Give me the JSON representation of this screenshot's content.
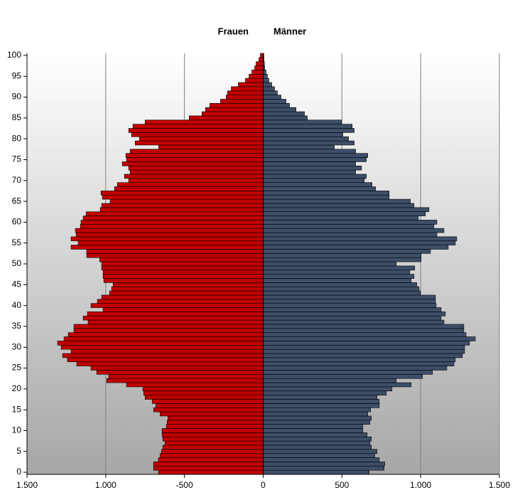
{
  "chart_data": {
    "type": "pyramid",
    "categories": [
      0,
      1,
      2,
      3,
      4,
      5,
      6,
      7,
      8,
      9,
      10,
      11,
      12,
      13,
      14,
      15,
      16,
      17,
      18,
      19,
      20,
      21,
      22,
      23,
      24,
      25,
      26,
      27,
      28,
      29,
      30,
      31,
      32,
      33,
      34,
      35,
      36,
      37,
      38,
      39,
      40,
      41,
      42,
      43,
      44,
      45,
      46,
      47,
      48,
      49,
      50,
      51,
      52,
      53,
      54,
      55,
      56,
      57,
      58,
      59,
      60,
      61,
      62,
      63,
      64,
      65,
      66,
      67,
      68,
      69,
      70,
      71,
      72,
      73,
      74,
      75,
      76,
      77,
      78,
      79,
      80,
      81,
      82,
      83,
      84,
      85,
      86,
      87,
      88,
      89,
      90,
      91,
      92,
      93,
      94,
      95,
      96,
      97,
      98,
      99,
      100
    ],
    "series": [
      {
        "name": "Frauen",
        "color": "#c00000",
        "side": "left",
        "values": [
          665,
          696,
          696,
          665,
          655,
          646,
          637,
          624,
          637,
          642,
          642,
          615,
          610,
          605,
          655,
          696,
          682,
          705,
          750,
          759,
          764,
          868,
          994,
          981,
          1057,
          1094,
          1184,
          1243,
          1274,
          1220,
          1283,
          1306,
          1265,
          1238,
          1202,
          1202,
          1112,
          1143,
          1116,
          1017,
          1094,
          1053,
          1026,
          976,
          963,
          953,
          1012,
          1017,
          1017,
          1026,
          1026,
          1039,
          1121,
          1121,
          1220,
          1175,
          1220,
          1188,
          1193,
          1161,
          1157,
          1143,
          1125,
          1035,
          1026,
          972,
          1021,
          1030,
          944,
          926,
          854,
          881,
          845,
          854,
          895,
          868,
          872,
          845,
          664,
          813,
          786,
          836,
          854,
          827,
          750,
          470,
          389,
          366,
          339,
          271,
          235,
          226,
          203,
          158,
          113,
          90,
          72,
          54,
          45,
          27,
          18
        ]
      },
      {
        "name": "Männer",
        "color": "#3d4e68",
        "side": "right",
        "values": [
          673,
          768,
          772,
          737,
          709,
          723,
          687,
          678,
          687,
          660,
          633,
          633,
          678,
          687,
          664,
          682,
          737,
          737,
          723,
          782,
          818,
          940,
          845,
          1012,
          1075,
          1166,
          1211,
          1220,
          1265,
          1279,
          1279,
          1310,
          1347,
          1288,
          1274,
          1274,
          1148,
          1130,
          1157,
          1130,
          1098,
          1094,
          1094,
          999,
          990,
          976,
          940,
          958,
          931,
          962,
          845,
          1003,
          1003,
          1062,
          1175,
          1220,
          1229,
          1103,
          1148,
          1084,
          1103,
          985,
          1030,
          1053,
          958,
          935,
          800,
          800,
          714,
          691,
          642,
          655,
          587,
          624,
          587,
          655,
          664,
          587,
          452,
          578,
          542,
          506,
          578,
          565,
          497,
          280,
          262,
          208,
          167,
          145,
          113,
          90,
          72,
          54,
          36,
          27,
          18,
          10,
          8,
          5,
          4
        ]
      }
    ],
    "xlim": [
      -1500,
      1500
    ],
    "xticks": [
      {
        "value": -1500,
        "label": "1.500"
      },
      {
        "value": -1000,
        "label": "1.000"
      },
      -500,
      0,
      500,
      {
        "value": 1000,
        "label": "1.000"
      },
      {
        "value": 1500,
        "label": "1.500"
      }
    ],
    "ylim": [
      -0.5,
      100.5
    ],
    "yticks": [
      0,
      5,
      10,
      15,
      20,
      25,
      30,
      35,
      40,
      45,
      50,
      55,
      60,
      65,
      70,
      75,
      80,
      85,
      90,
      95,
      100
    ],
    "grid": true
  }
}
